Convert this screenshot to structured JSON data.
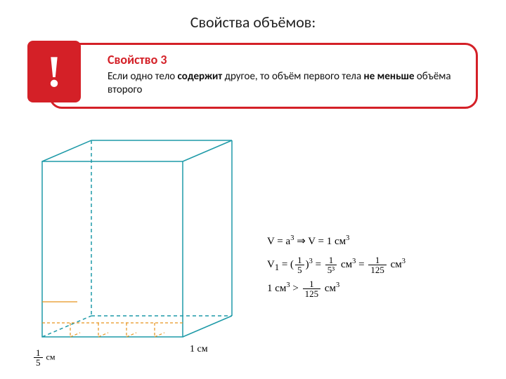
{
  "title": "Свойства объёмов:",
  "callout": {
    "border_color": "#d42027",
    "bang_bg": "#d42027",
    "bang_glyph": "!",
    "heading": "Свойство 3",
    "heading_color": "#d42027",
    "body_html": "Если одно тело <b>содержит</b> другое, то объём первого тела <b>не меньше</b> объёма второго"
  },
  "figure": {
    "stroke": "#1e9aa8",
    "dash": "#1e9aa8",
    "sub_stroke": "#e7941f",
    "grid_stroke": "#1e9aa8",
    "label_1cm": "1 см",
    "label_frac_num": "1",
    "label_frac_den": "5",
    "label_frac_unit": "см"
  },
  "formulas": {
    "line1_pre": "V = a",
    "line1_sup": "3",
    "line1_mid": " ⇒ V = 1 см",
    "line1_sup2": "3",
    "line2_lhs": "V",
    "line2_sub": "1",
    "line2_eq": " = (",
    "line2_f1n": "1",
    "line2_f1d": "5",
    "line2_paren": ")",
    "line2_pow": "3",
    "line2_eq2": " = ",
    "line2_f2n": "1",
    "line2_f2d": "5³",
    "line2_unit": " см",
    "line2_up": "3",
    "line2_eq3": " = ",
    "line2_f3n": "1",
    "line2_f3d": "125",
    "line2_unit2": " см",
    "line2_up2": "3",
    "line3_lhs": "1 см",
    "line3_sup": "3",
    "line3_gt": " > ",
    "line3_fn": "1",
    "line3_fd": "125",
    "line3_unit": " см",
    "line3_sup2": "3"
  },
  "colors": {
    "bg": "#ffffff",
    "text": "#111111"
  }
}
